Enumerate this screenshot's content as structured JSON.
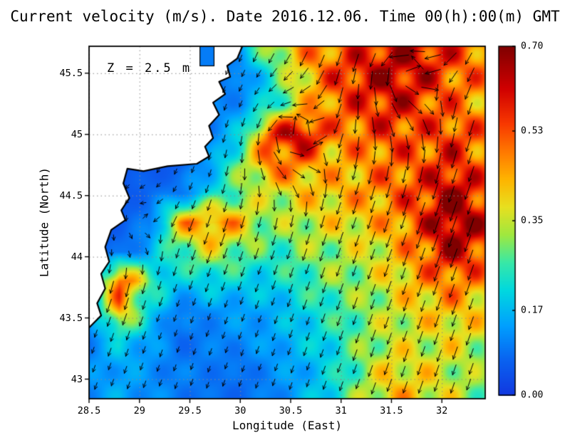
{
  "chart_data": {
    "type": "heatmap",
    "title": "Current velocity (m/s). Date 2016.12.06. Time 00(h):00(m) GMT",
    "annotation": "Z = 2.5 m",
    "xlabel": "Longitude (East)",
    "ylabel": "Latitude (North)",
    "units": "m/s",
    "xlim": [
      28.5,
      32.43
    ],
    "ylim": [
      42.84,
      45.72
    ],
    "grid": "dotted",
    "legend_position": "none",
    "xticks": {
      "values": [
        28.5,
        29,
        29.5,
        30,
        30.5,
        31,
        31.5,
        32
      ],
      "labels": [
        "28.5",
        "29",
        "29.5",
        "30",
        "30.5",
        "31",
        "31.5",
        "32"
      ]
    },
    "yticks": {
      "values": [
        43,
        43.5,
        44,
        44.5,
        45,
        45.5
      ],
      "labels": [
        "43",
        "43.5",
        "44",
        "44.5",
        "45",
        "45.5"
      ]
    },
    "colorbar": {
      "min": 0.0,
      "max": 0.7,
      "tick_values": [
        0.7,
        0.53,
        0.35,
        0.17,
        0.0
      ],
      "tick_labels": [
        "0.70",
        "0.53",
        "0.35",
        "0.17",
        "0.00"
      ]
    },
    "colormap": [
      [
        0.0,
        "#1238e0"
      ],
      [
        0.1,
        "#0a62f0"
      ],
      [
        0.2,
        "#00a0ff"
      ],
      [
        0.3,
        "#00d8e0"
      ],
      [
        0.38,
        "#38e8a8"
      ],
      [
        0.46,
        "#a0e840"
      ],
      [
        0.54,
        "#e8e020"
      ],
      [
        0.62,
        "#ffb400"
      ],
      [
        0.7,
        "#ff7800"
      ],
      [
        0.78,
        "#f83800"
      ],
      [
        0.88,
        "#d00000"
      ],
      [
        1.0,
        "#800000"
      ]
    ],
    "land_color": "#ffffff",
    "coast_color": "#000000",
    "arrow_color": "#000000",
    "speed_grid": {
      "comment": "current speed m/s, rows ordered north to south matching lat[]",
      "lon": [
        28.5,
        28.8,
        29.1,
        29.4,
        29.7,
        30.0,
        30.3,
        30.6,
        30.9,
        31.2,
        31.5,
        31.8,
        32.1,
        32.4
      ],
      "lat": [
        45.72,
        45.48,
        45.24,
        45.0,
        44.76,
        44.52,
        44.28,
        44.04,
        43.8,
        43.56,
        43.32,
        43.08,
        42.84
      ],
      "values": [
        [
          0.05,
          0.05,
          0.05,
          0.05,
          0.08,
          0.15,
          0.35,
          0.45,
          0.5,
          0.55,
          0.62,
          0.62,
          0.55,
          0.5
        ],
        [
          0.05,
          0.05,
          0.05,
          0.05,
          0.08,
          0.1,
          0.22,
          0.4,
          0.52,
          0.6,
          0.65,
          0.6,
          0.52,
          0.48
        ],
        [
          0.05,
          0.05,
          0.05,
          0.05,
          0.1,
          0.12,
          0.22,
          0.38,
          0.5,
          0.55,
          0.6,
          0.55,
          0.5,
          0.45
        ],
        [
          0.05,
          0.05,
          0.05,
          0.05,
          0.1,
          0.2,
          0.55,
          0.66,
          0.48,
          0.5,
          0.55,
          0.52,
          0.55,
          0.5
        ],
        [
          0.05,
          0.05,
          0.05,
          0.06,
          0.14,
          0.3,
          0.5,
          0.48,
          0.42,
          0.45,
          0.5,
          0.52,
          0.58,
          0.5
        ],
        [
          0.05,
          0.05,
          0.08,
          0.1,
          0.2,
          0.3,
          0.35,
          0.4,
          0.42,
          0.45,
          0.5,
          0.55,
          0.68,
          0.55
        ],
        [
          0.05,
          0.06,
          0.1,
          0.42,
          0.5,
          0.42,
          0.3,
          0.35,
          0.38,
          0.4,
          0.45,
          0.55,
          0.7,
          0.6
        ],
        [
          0.05,
          0.08,
          0.15,
          0.28,
          0.35,
          0.3,
          0.25,
          0.3,
          0.32,
          0.35,
          0.4,
          0.5,
          0.65,
          0.55
        ],
        [
          0.08,
          0.55,
          0.28,
          0.18,
          0.22,
          0.2,
          0.2,
          0.25,
          0.3,
          0.32,
          0.38,
          0.45,
          0.5,
          0.45
        ],
        [
          0.1,
          0.45,
          0.2,
          0.1,
          0.12,
          0.14,
          0.15,
          0.2,
          0.25,
          0.3,
          0.35,
          0.4,
          0.42,
          0.4
        ],
        [
          0.1,
          0.2,
          0.15,
          0.08,
          0.1,
          0.12,
          0.14,
          0.18,
          0.22,
          0.3,
          0.35,
          0.35,
          0.38,
          0.35
        ],
        [
          0.12,
          0.15,
          0.12,
          0.1,
          0.1,
          0.08,
          0.12,
          0.15,
          0.2,
          0.3,
          0.4,
          0.38,
          0.35,
          0.3
        ],
        [
          0.12,
          0.15,
          0.12,
          0.1,
          0.08,
          0.08,
          0.1,
          0.15,
          0.22,
          0.32,
          0.42,
          0.4,
          0.35,
          0.3
        ]
      ]
    },
    "flow": {
      "comment": "vector direction model: background drift plus gaussian vortices, u east / v north, CCW positive strength",
      "background": {
        "u": -0.35,
        "v": -1.0
      },
      "vortices": [
        {
          "lon": 30.45,
          "lat": 45.02,
          "r": 0.42,
          "strength": 2.4
        },
        {
          "lon": 31.6,
          "lat": 45.55,
          "r": 0.55,
          "strength": 1.5
        },
        {
          "lon": 28.95,
          "lat": 44.35,
          "r": 0.35,
          "strength": 1.3
        }
      ]
    },
    "coastline": [
      [
        30.02,
        45.72
      ],
      [
        29.97,
        45.62
      ],
      [
        29.87,
        45.56
      ],
      [
        29.9,
        45.47
      ],
      [
        29.79,
        45.43
      ],
      [
        29.85,
        45.33
      ],
      [
        29.73,
        45.26
      ],
      [
        29.79,
        45.16
      ],
      [
        29.69,
        45.07
      ],
      [
        29.73,
        44.97
      ],
      [
        29.65,
        44.9
      ],
      [
        29.69,
        44.82
      ],
      [
        29.57,
        44.76
      ],
      [
        29.28,
        44.74
      ],
      [
        29.04,
        44.7
      ],
      [
        28.88,
        44.72
      ],
      [
        28.84,
        44.6
      ],
      [
        28.9,
        44.48
      ],
      [
        28.82,
        44.38
      ],
      [
        28.86,
        44.3
      ],
      [
        28.72,
        44.22
      ],
      [
        28.66,
        44.08
      ],
      [
        28.7,
        43.96
      ],
      [
        28.62,
        43.86
      ],
      [
        28.66,
        43.74
      ],
      [
        28.58,
        43.62
      ],
      [
        28.62,
        43.52
      ],
      [
        28.5,
        43.42
      ]
    ],
    "lagoon_rect": {
      "lon": [
        29.6,
        29.74
      ],
      "lat": [
        45.56,
        45.72
      ],
      "speed": 0.1
    }
  }
}
